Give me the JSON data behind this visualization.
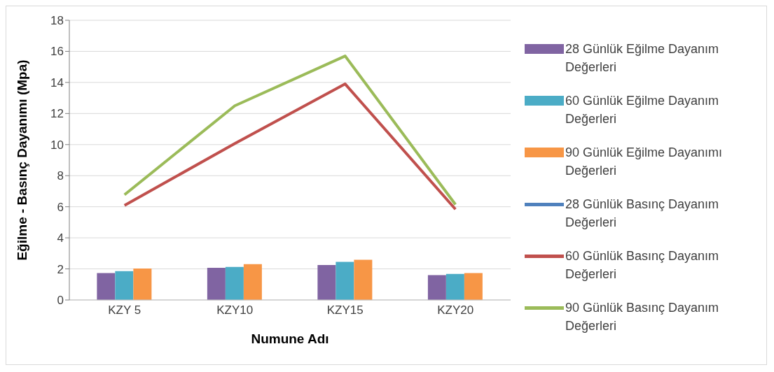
{
  "chart_data": {
    "type": "bar",
    "xlabel": "Numune Adı",
    "ylabel": "Eğilme - Basınç Dayanımı (Mpa)",
    "categories": [
      "KZY 5",
      "KZY10",
      "KZY15",
      "KZY20"
    ],
    "series": [
      {
        "name": "28 Günlük Eğilme Dayanım Değerleri",
        "color": "#8064a2",
        "values": [
          1.73,
          2.07,
          2.25,
          1.6
        ]
      },
      {
        "name": "60 Günlük Eğilme Dayanım Değerleri",
        "color": "#4bacc6",
        "values": [
          1.86,
          2.13,
          2.45,
          1.68
        ]
      },
      {
        "name": "90 Günlük Eğilme Dayanımı Değerleri",
        "color": "#f79646",
        "values": [
          2.02,
          2.31,
          2.59,
          1.73
        ]
      },
      {
        "name": "28 Günlük Basınç Dayanım Değerleri",
        "type": "line",
        "color": "#4f81bd",
        "values": [
          null,
          null,
          null,
          null
        ]
      },
      {
        "name": "60 Günlük Basınç Dayanım Değerleri",
        "type": "line",
        "color": "#c0504d",
        "values": [
          6.09,
          10.07,
          13.9,
          5.84
        ]
      },
      {
        "name": "90 Günlük Basınç Dayanım Değerleri",
        "type": "line",
        "color": "#9bbb59",
        "values": [
          6.77,
          12.5,
          15.7,
          6.14
        ]
      }
    ],
    "ylim": [
      0,
      18
    ],
    "yticks": [
      0,
      2,
      4,
      6,
      8,
      10,
      12,
      14,
      16,
      18
    ],
    "grid": "y",
    "legend": "right",
    "marker": "none"
  }
}
